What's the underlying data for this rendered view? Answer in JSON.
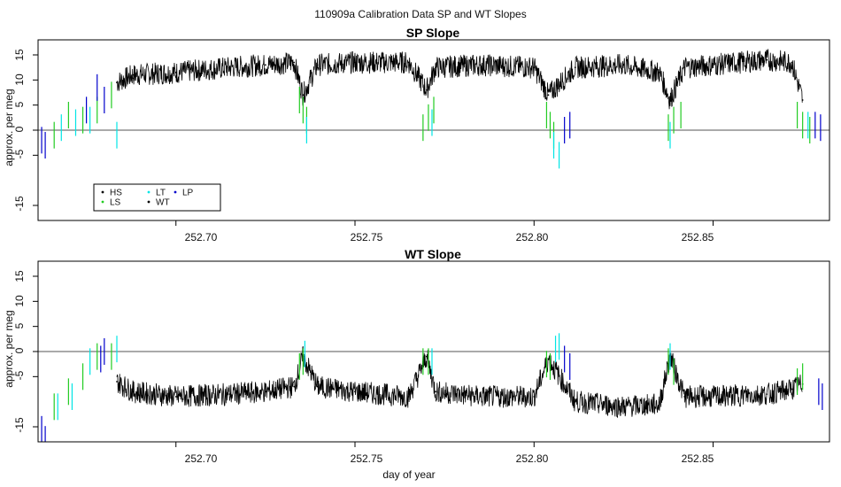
{
  "figure_title": "110909a   Calibration Data SP and WT Slopes",
  "chart_data": [
    {
      "type": "line",
      "title": "SP Slope",
      "xlabel": "",
      "ylabel": "approx. per meg",
      "xlim": [
        252.6615,
        252.8825
      ],
      "ylim": [
        -18,
        18
      ],
      "x_ticks": [
        "252.70",
        "252.75",
        "252.80",
        "252.85"
      ],
      "x_tick_values": [
        252.7,
        252.75,
        252.8,
        252.85
      ],
      "y_ticks": [
        "-15",
        "-5",
        "0",
        "5",
        "10",
        "15"
      ],
      "y_tick_values": [
        -15,
        -5,
        0,
        5,
        10,
        15
      ],
      "hline": 0,
      "legend": {
        "placement": "bottom-left",
        "entries": [
          {
            "label": "HS",
            "color": "#000000"
          },
          {
            "label": "LT",
            "color": "#00e5e5"
          },
          {
            "label": "LP",
            "color": "#0000cc"
          },
          {
            "label": "LS",
            "color": "#22cc22"
          },
          {
            "label": "WT",
            "color": "#000000"
          }
        ]
      },
      "series": [
        {
          "name": "WT",
          "color": "#000000",
          "x": [
            252.6835,
            252.688,
            252.7,
            252.715,
            252.725,
            252.733,
            252.7355,
            252.7395,
            252.75,
            252.765,
            252.77,
            252.7725,
            252.785,
            252.8,
            252.804,
            252.8115,
            252.825,
            252.835,
            252.838,
            252.842,
            252.85,
            252.865,
            252.872,
            252.875
          ],
          "y": [
            9.5,
            11.0,
            11.5,
            12.5,
            13.0,
            13.5,
            7.0,
            13.0,
            13.5,
            13.5,
            8.0,
            12.5,
            13.0,
            12.5,
            7.0,
            12.5,
            13.0,
            11.5,
            6.0,
            12.5,
            13.0,
            14.0,
            13.5,
            6.0
          ]
        },
        {
          "name": "LS",
          "color": "#22cc22",
          "x": [
            252.666,
            252.67,
            252.674,
            252.678,
            252.682,
            252.7345,
            252.7355,
            252.7365,
            252.769,
            252.7705,
            252.772,
            252.8035,
            252.8045,
            252.8055,
            252.8375,
            252.839,
            252.841,
            252.8735,
            252.875,
            252.877
          ],
          "y": [
            -1.0,
            3.0,
            2.0,
            4.0,
            7.0,
            6.0,
            4.0,
            2.0,
            0.5,
            2.5,
            4.0,
            3.0,
            1.0,
            -1.0,
            0.5,
            2.0,
            3.0,
            3.0,
            1.0,
            0.0
          ]
        },
        {
          "name": "LT",
          "color": "#00e5e5",
          "x": [
            252.668,
            252.672,
            252.676,
            252.6835,
            252.7365,
            252.7715,
            252.8055,
            252.807,
            252.838,
            252.8765
          ],
          "y": [
            0.5,
            1.5,
            2.0,
            -1.0,
            0.0,
            1.5,
            -3.0,
            -5.0,
            -1.0,
            1.0
          ]
        },
        {
          "name": "LP",
          "color": "#0000cc",
          "x": [
            252.6625,
            252.6635,
            252.675,
            252.678,
            252.68,
            252.8085,
            252.81,
            252.8785,
            252.88
          ],
          "y": [
            -2.0,
            -3.0,
            4.0,
            8.5,
            6.0,
            0.0,
            1.0,
            1.0,
            0.5
          ]
        }
      ]
    },
    {
      "type": "line",
      "title": "WT Slope",
      "xlabel": "day of year",
      "ylabel": "approx. per meg",
      "xlim": [
        252.6615,
        252.8825
      ],
      "ylim": [
        -18,
        18
      ],
      "x_ticks": [
        "252.70",
        "252.75",
        "252.80",
        "252.85"
      ],
      "x_tick_values": [
        252.7,
        252.75,
        252.8,
        252.85
      ],
      "y_ticks": [
        "-15",
        "-5",
        "0",
        "5",
        "10",
        "15"
      ],
      "y_tick_values": [
        -15,
        -5,
        0,
        5,
        10,
        15
      ],
      "hline": 0,
      "series": [
        {
          "name": "WT",
          "color": "#000000",
          "x": [
            252.6835,
            252.688,
            252.7,
            252.715,
            252.725,
            252.733,
            252.7355,
            252.7395,
            252.75,
            252.765,
            252.77,
            252.7725,
            252.785,
            252.8,
            252.804,
            252.8115,
            252.825,
            252.835,
            252.838,
            252.842,
            252.85,
            252.865,
            252.872,
            252.875
          ],
          "y": [
            -6.0,
            -8.0,
            -9.0,
            -8.5,
            -8.0,
            -7.0,
            -1.0,
            -7.0,
            -8.0,
            -9.0,
            -1.0,
            -8.0,
            -9.0,
            -9.0,
            -1.5,
            -10.0,
            -11.0,
            -10.5,
            -1.0,
            -9.0,
            -9.0,
            -8.5,
            -7.5,
            -6.5
          ]
        },
        {
          "name": "LS",
          "color": "#22cc22",
          "x": [
            252.666,
            252.67,
            252.674,
            252.678,
            252.682,
            252.7345,
            252.7355,
            252.769,
            252.7705,
            252.8035,
            252.8045,
            252.8375,
            252.839,
            252.8735,
            252.875
          ],
          "y": [
            -11.0,
            -8.0,
            -5.0,
            -1.0,
            -1.0,
            -3.0,
            -2.0,
            -2.0,
            -2.0,
            -2.5,
            -3.0,
            -2.0,
            -4.0,
            -6.0,
            -5.0
          ]
        },
        {
          "name": "LT",
          "color": "#00e5e5",
          "x": [
            252.667,
            252.671,
            252.676,
            252.6835,
            252.736,
            252.7715,
            252.806,
            252.807,
            252.838
          ],
          "y": [
            -11.0,
            -9.0,
            -2.0,
            0.5,
            -0.5,
            -2.0,
            0.5,
            1.0,
            -1.0
          ]
        },
        {
          "name": "LP",
          "color": "#0000cc",
          "x": [
            252.6625,
            252.6635,
            252.679,
            252.68,
            252.8085,
            252.81,
            252.8795,
            252.8805
          ],
          "y": [
            -15.5,
            -17.5,
            -1.5,
            0.0,
            -1.5,
            -3.0,
            -8.0,
            -9.0
          ]
        }
      ]
    }
  ]
}
